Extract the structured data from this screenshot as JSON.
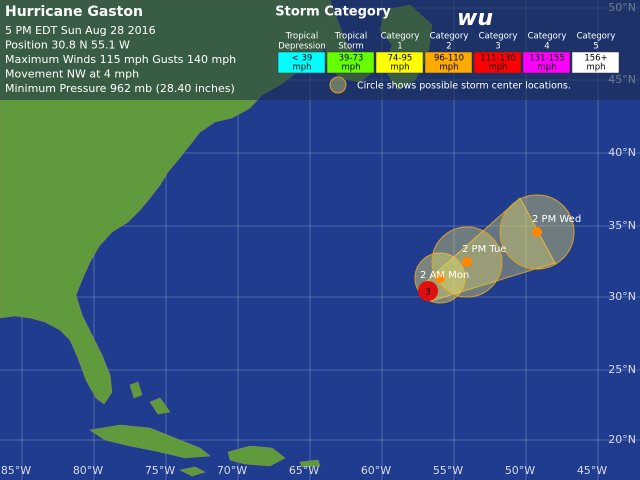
{
  "header": {
    "title": "Hurricane Gaston",
    "lines": [
      "5 PM EDT Sun Aug 28 2016",
      "Position 30.8 N 55.1 W",
      "Maximum Winds 115 mph  Gusts 140 mph",
      "Movement NW at 4 mph",
      "Minimum Pressure 962 mb (28.40 inches)"
    ]
  },
  "legend": {
    "title": "Storm Category",
    "categories": [
      {
        "name_lines": [
          "Tropical",
          "Depression"
        ],
        "range_lines": [
          "< 39",
          "mph"
        ]
      },
      {
        "name_lines": [
          "Tropical",
          "Storm"
        ],
        "range_lines": [
          "39-73",
          "mph"
        ]
      },
      {
        "name_lines": [
          "Category",
          "1"
        ],
        "range_lines": [
          "74-95",
          "mph"
        ]
      },
      {
        "name_lines": [
          "Category",
          "2"
        ],
        "range_lines": [
          "96-110",
          "mph"
        ]
      },
      {
        "name_lines": [
          "Category",
          "3"
        ],
        "range_lines": [
          "111-130",
          "mph"
        ]
      },
      {
        "name_lines": [
          "Category",
          "4"
        ],
        "range_lines": [
          "131-155",
          "mph"
        ]
      },
      {
        "name_lines": [
          "Category",
          "5"
        ],
        "range_lines": [
          "156+",
          "mph"
        ]
      }
    ],
    "note": "Circle shows possible storm center locations."
  },
  "logo": "wu",
  "current_marker": "3",
  "forecast": [
    {
      "label": "2 AM Mon"
    },
    {
      "label": "2 PM Tue"
    },
    {
      "label": "2 PM Wed"
    }
  ],
  "lat_labels": [
    "50°N",
    "45°N",
    "40°N",
    "35°N",
    "30°N",
    "25°N",
    "20°N"
  ],
  "lon_labels": [
    "85°W",
    "80°W",
    "75°W",
    "70°W",
    "65°W",
    "60°W",
    "55°W",
    "50°W",
    "45°W"
  ]
}
